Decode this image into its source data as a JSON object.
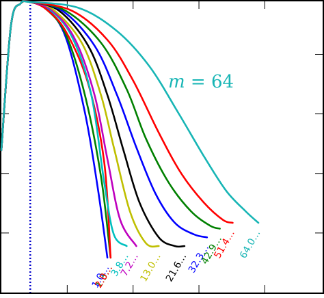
{
  "chart_data": {
    "type": "line",
    "title": "",
    "xlabel": "",
    "ylabel": "",
    "xlim": [
      0,
      1
    ],
    "ylim": [
      0,
      1
    ],
    "x_ticks": [
      0,
      0.205,
      0.41,
      0.615,
      0.82,
      1.0
    ],
    "y_ticks": [
      0,
      0.205,
      0.41,
      0.615,
      0.82,
      1.0
    ],
    "tick_labels_visible": false,
    "grid": false,
    "legend": "none",
    "reference_line": {
      "x": 0.09,
      "style": "dotted",
      "color": "#0000cc"
    },
    "annotation": {
      "text_var": "m",
      "text_rest": " = 64",
      "color": "#17b5b5"
    },
    "series": [
      {
        "end_label": "1.0…",
        "color": "#0000ff",
        "values": [
          [
            0.0,
            0.49
          ],
          [
            0.03,
            0.92
          ],
          [
            0.06,
            0.995
          ],
          [
            0.09,
            1.0
          ],
          [
            0.14,
            0.98
          ],
          [
            0.2,
            0.88
          ],
          [
            0.26,
            0.62
          ],
          [
            0.3,
            0.36
          ],
          [
            0.33,
            0.12
          ]
        ]
      },
      {
        "end_label": "1.3…",
        "color": "#008000",
        "values": [
          [
            0.0,
            0.49
          ],
          [
            0.03,
            0.92
          ],
          [
            0.06,
            0.995
          ],
          [
            0.09,
            1.0
          ],
          [
            0.14,
            0.975
          ],
          [
            0.2,
            0.89
          ],
          [
            0.26,
            0.68
          ],
          [
            0.31,
            0.4
          ],
          [
            0.34,
            0.12
          ]
        ]
      },
      {
        "end_label": "2.0…",
        "color": "#ff0000",
        "values": [
          [
            0.0,
            0.49
          ],
          [
            0.03,
            0.92
          ],
          [
            0.06,
            0.995
          ],
          [
            0.09,
            1.0
          ],
          [
            0.14,
            0.975
          ],
          [
            0.2,
            0.9
          ],
          [
            0.27,
            0.72
          ],
          [
            0.32,
            0.45
          ],
          [
            0.34,
            0.12
          ]
        ]
      },
      {
        "end_label": "3.8…",
        "color": "#00bfbf",
        "values": [
          [
            0.0,
            0.49
          ],
          [
            0.03,
            0.92
          ],
          [
            0.06,
            0.995
          ],
          [
            0.09,
            1.0
          ],
          [
            0.15,
            0.975
          ],
          [
            0.22,
            0.88
          ],
          [
            0.28,
            0.68
          ],
          [
            0.32,
            0.38
          ],
          [
            0.35,
            0.2
          ],
          [
            0.39,
            0.16
          ]
        ]
      },
      {
        "end_label": "7.2…",
        "color": "#bf00bf",
        "values": [
          [
            0.0,
            0.49
          ],
          [
            0.03,
            0.92
          ],
          [
            0.06,
            0.995
          ],
          [
            0.09,
            1.0
          ],
          [
            0.16,
            0.97
          ],
          [
            0.23,
            0.87
          ],
          [
            0.29,
            0.68
          ],
          [
            0.33,
            0.46
          ],
          [
            0.37,
            0.25
          ],
          [
            0.42,
            0.16
          ]
        ]
      },
      {
        "end_label": "13.0…",
        "color": "#bfbf00",
        "values": [
          [
            0.0,
            0.49
          ],
          [
            0.03,
            0.92
          ],
          [
            0.06,
            0.995
          ],
          [
            0.09,
            1.0
          ],
          [
            0.16,
            0.975
          ],
          [
            0.25,
            0.86
          ],
          [
            0.31,
            0.68
          ],
          [
            0.35,
            0.5
          ],
          [
            0.4,
            0.28
          ],
          [
            0.45,
            0.17
          ],
          [
            0.49,
            0.16
          ]
        ]
      },
      {
        "end_label": "21.6…",
        "color": "#000000",
        "values": [
          [
            0.0,
            0.49
          ],
          [
            0.03,
            0.92
          ],
          [
            0.06,
            0.995
          ],
          [
            0.09,
            1.0
          ],
          [
            0.18,
            0.97
          ],
          [
            0.27,
            0.85
          ],
          [
            0.33,
            0.68
          ],
          [
            0.38,
            0.49
          ],
          [
            0.43,
            0.31
          ],
          [
            0.49,
            0.19
          ],
          [
            0.54,
            0.16
          ],
          [
            0.57,
            0.16
          ]
        ]
      },
      {
        "end_label": "32.3…",
        "color": "#0000ff",
        "values": [
          [
            0.0,
            0.49
          ],
          [
            0.03,
            0.92
          ],
          [
            0.06,
            0.995
          ],
          [
            0.09,
            1.0
          ],
          [
            0.19,
            0.97
          ],
          [
            0.29,
            0.85
          ],
          [
            0.36,
            0.68
          ],
          [
            0.42,
            0.5
          ],
          [
            0.48,
            0.34
          ],
          [
            0.54,
            0.24
          ],
          [
            0.6,
            0.2
          ],
          [
            0.64,
            0.19
          ]
        ]
      },
      {
        "end_label": "42.9…",
        "color": "#008000",
        "values": [
          [
            0.0,
            0.49
          ],
          [
            0.03,
            0.92
          ],
          [
            0.06,
            0.995
          ],
          [
            0.09,
            1.0
          ],
          [
            0.2,
            0.97
          ],
          [
            0.31,
            0.86
          ],
          [
            0.39,
            0.7
          ],
          [
            0.45,
            0.53
          ],
          [
            0.52,
            0.38
          ],
          [
            0.59,
            0.28
          ],
          [
            0.65,
            0.23
          ],
          [
            0.68,
            0.22
          ]
        ]
      },
      {
        "end_label": "51.4…",
        "color": "#ff0000",
        "values": [
          [
            0.0,
            0.49
          ],
          [
            0.03,
            0.92
          ],
          [
            0.06,
            0.995
          ],
          [
            0.09,
            1.0
          ],
          [
            0.22,
            0.97
          ],
          [
            0.33,
            0.87
          ],
          [
            0.41,
            0.73
          ],
          [
            0.49,
            0.55
          ],
          [
            0.56,
            0.41
          ],
          [
            0.63,
            0.31
          ],
          [
            0.69,
            0.25
          ],
          [
            0.72,
            0.24
          ]
        ]
      },
      {
        "end_label": "64.0…",
        "color": "#17b5b5",
        "values": [
          [
            0.0,
            0.49
          ],
          [
            0.03,
            0.92
          ],
          [
            0.06,
            0.995
          ],
          [
            0.09,
            1.0
          ],
          [
            0.24,
            0.98
          ],
          [
            0.36,
            0.9
          ],
          [
            0.46,
            0.78
          ],
          [
            0.55,
            0.62
          ],
          [
            0.63,
            0.47
          ],
          [
            0.7,
            0.35
          ],
          [
            0.76,
            0.28
          ],
          [
            0.8,
            0.24
          ]
        ]
      }
    ]
  }
}
